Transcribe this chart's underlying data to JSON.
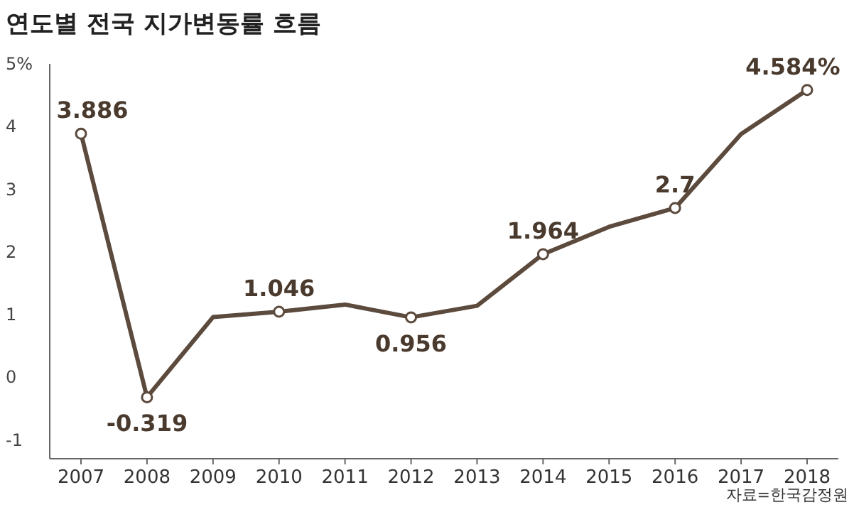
{
  "chart_data": {
    "type": "line",
    "title": "연도별 전국 지가변동률 흐름",
    "categories": [
      "2007",
      "2008",
      "2009",
      "2010",
      "2011",
      "2012",
      "2013",
      "2014",
      "2015",
      "2016",
      "2017",
      "2018"
    ],
    "series": [
      {
        "color": "#5c4a3d",
        "values": [
          3.886,
          -0.319,
          0.96,
          1.046,
          1.16,
          0.956,
          1.14,
          1.964,
          2.4,
          2.7,
          3.88,
          4.584
        ],
        "value_labels": [
          "3.886",
          "-0.319",
          null,
          "1.046",
          null,
          "0.956",
          null,
          "1.964",
          null,
          "2.7",
          null,
          "4.584%"
        ]
      }
    ],
    "ylim": [
      -1.3,
      5
    ],
    "yticks": [
      {
        "value": 5,
        "label": "5%"
      },
      4,
      3,
      2,
      1,
      0,
      -1
    ],
    "grid": false,
    "marker": "circle",
    "line_style": "solid",
    "annotations": [
      "자료=한국감정원"
    ]
  }
}
